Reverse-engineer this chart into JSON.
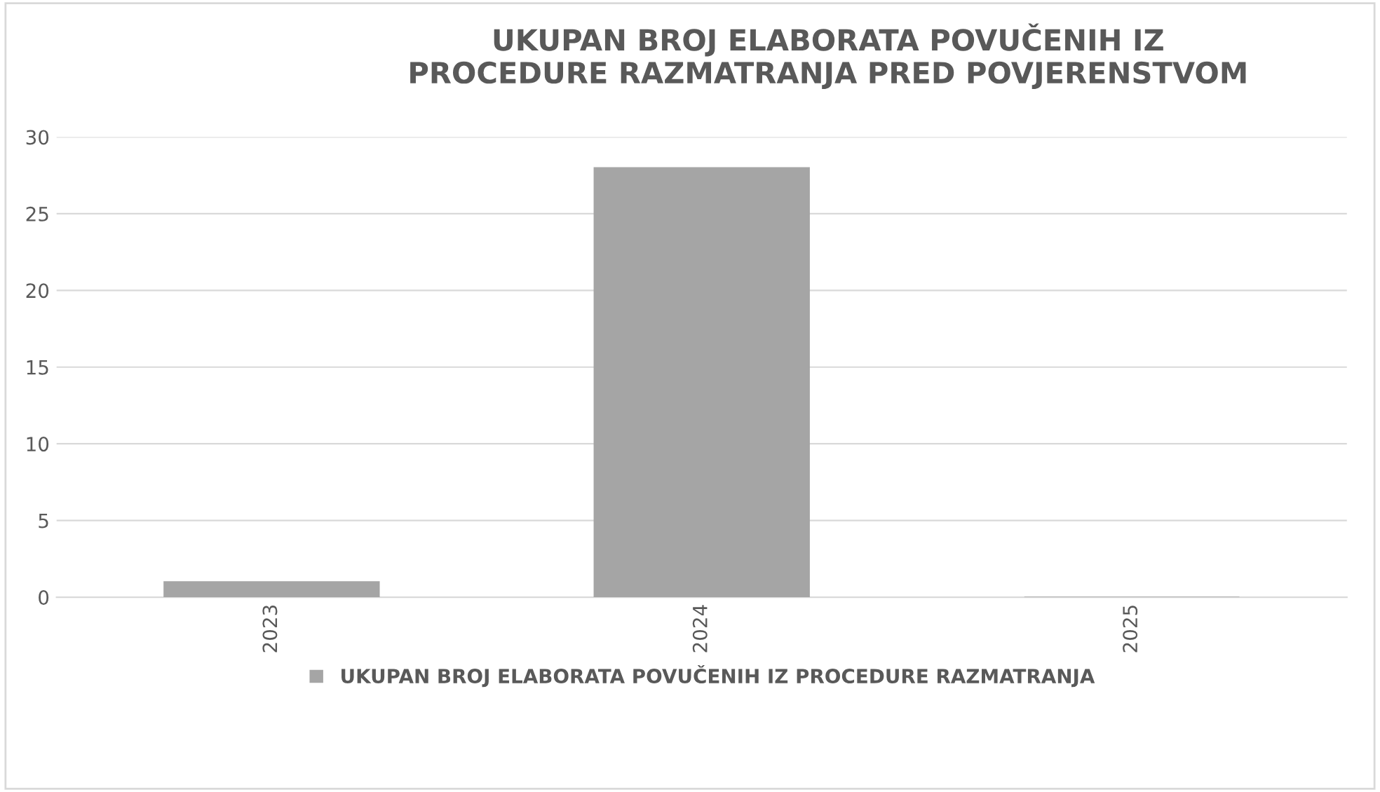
{
  "chart_data": {
    "type": "bar",
    "title": "UKUPAN BROJ ELABORATA POVUČENIH IZ\nPROCEDURE RAZMATRANJA PRED POVJERENSTVOM",
    "categories": [
      "2023",
      "2024",
      "2025"
    ],
    "series": [
      {
        "name": "UKUPAN BROJ ELABORATA POVUČENIH IZ PROCEDURE RAZMATRANJA",
        "color": "#a5a5a5",
        "values": [
          1,
          28,
          0
        ]
      }
    ],
    "ylim": [
      0,
      30
    ],
    "yticks": [
      0,
      5,
      10,
      15,
      20,
      25,
      30
    ],
    "grid": "y",
    "legend": "bottom"
  }
}
